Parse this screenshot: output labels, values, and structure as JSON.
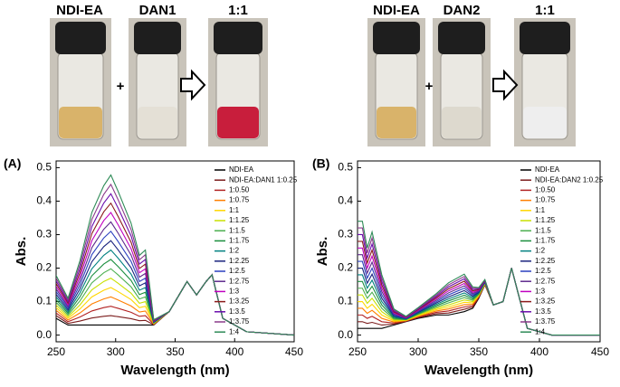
{
  "photos": {
    "left": [
      "NDI-EA",
      "DAN1",
      "1:1"
    ],
    "right": [
      "NDI-EA",
      "DAN2",
      "1:1"
    ],
    "plus": "+"
  },
  "chart_data": [
    {
      "type": "line",
      "panel_label": "(A)",
      "xlabel": "Wavelength (nm)",
      "ylabel": "Abs.",
      "xlim": [
        250,
        450
      ],
      "xticks": [
        250,
        300,
        350,
        400,
        450
      ],
      "ylim": [
        -0.02,
        0.52
      ],
      "yticks": [
        {
          "value": 0,
          "label": "0.0"
        },
        0.1,
        0.2,
        0.3,
        0.4,
        0.5
      ],
      "legend": "upper right",
      "x": [
        250,
        260,
        270,
        280,
        290,
        296,
        302,
        313,
        320,
        325,
        332,
        345,
        355,
        360,
        368,
        376,
        381,
        390,
        410,
        450
      ],
      "series": [
        {
          "name": "NDI-EA",
          "color": "#000000",
          "values": [
            0.05,
            0.03,
            0.03,
            0.03,
            0.03,
            0.03,
            0.03,
            0.03,
            0.03,
            0.03,
            0.03,
            0.07,
            0.13,
            0.16,
            0.12,
            0.16,
            0.18,
            0.05,
            0.01,
            0
          ]
        },
        {
          "name": "NDI-EA:DAN1 1:0.25",
          "color": "#7b1c1c",
          "values": [
            0.058,
            0.035,
            0.042,
            0.051,
            0.056,
            0.058,
            0.055,
            0.049,
            0.043,
            0.044,
            0.031,
            0.07,
            0.13,
            0.16,
            0.12,
            0.16,
            0.18,
            0.05,
            0.01,
            0
          ]
        },
        {
          "name": "1:0.50",
          "color": "#b22222",
          "values": [
            0.066,
            0.04,
            0.054,
            0.072,
            0.082,
            0.086,
            0.08,
            0.068,
            0.056,
            0.058,
            0.032,
            0.07,
            0.13,
            0.16,
            0.12,
            0.16,
            0.18,
            0.05,
            0.01,
            0
          ]
        },
        {
          "name": "1:0.75",
          "color": "#ff7f00",
          "values": [
            0.074,
            0.045,
            0.066,
            0.093,
            0.108,
            0.114,
            0.105,
            0.087,
            0.069,
            0.072,
            0.033,
            0.07,
            0.13,
            0.16,
            0.12,
            0.16,
            0.18,
            0.05,
            0.01,
            0
          ]
        },
        {
          "name": "1:1",
          "color": "#ffd700",
          "values": [
            0.082,
            0.05,
            0.078,
            0.114,
            0.134,
            0.142,
            0.13,
            0.106,
            0.082,
            0.086,
            0.034,
            0.07,
            0.13,
            0.16,
            0.12,
            0.16,
            0.18,
            0.05,
            0.01,
            0
          ]
        },
        {
          "name": "1:1.25",
          "color": "#c8e000",
          "values": [
            0.09,
            0.055,
            0.09,
            0.135,
            0.16,
            0.17,
            0.155,
            0.125,
            0.095,
            0.1,
            0.035,
            0.07,
            0.13,
            0.16,
            0.12,
            0.16,
            0.18,
            0.05,
            0.01,
            0
          ]
        },
        {
          "name": "1:1.5",
          "color": "#4caf50",
          "values": [
            0.098,
            0.06,
            0.102,
            0.156,
            0.186,
            0.198,
            0.18,
            0.144,
            0.108,
            0.114,
            0.036,
            0.07,
            0.13,
            0.16,
            0.12,
            0.16,
            0.18,
            0.05,
            0.01,
            0
          ]
        },
        {
          "name": "1:1.75",
          "color": "#1b8e3e",
          "values": [
            0.106,
            0.065,
            0.114,
            0.177,
            0.212,
            0.226,
            0.205,
            0.163,
            0.121,
            0.128,
            0.037,
            0.07,
            0.13,
            0.16,
            0.12,
            0.16,
            0.18,
            0.05,
            0.01,
            0
          ]
        },
        {
          "name": "1:2",
          "color": "#008080",
          "values": [
            0.114,
            0.07,
            0.126,
            0.198,
            0.238,
            0.254,
            0.23,
            0.182,
            0.134,
            0.142,
            0.038,
            0.07,
            0.13,
            0.16,
            0.12,
            0.16,
            0.18,
            0.05,
            0.01,
            0
          ]
        },
        {
          "name": "1:2.25",
          "color": "#1a237e",
          "values": [
            0.122,
            0.075,
            0.138,
            0.219,
            0.264,
            0.282,
            0.255,
            0.201,
            0.147,
            0.156,
            0.039,
            0.07,
            0.13,
            0.16,
            0.12,
            0.16,
            0.18,
            0.05,
            0.01,
            0
          ]
        },
        {
          "name": "1:2.5",
          "color": "#2a3fbf",
          "values": [
            0.13,
            0.08,
            0.15,
            0.24,
            0.29,
            0.31,
            0.28,
            0.22,
            0.16,
            0.17,
            0.04,
            0.07,
            0.13,
            0.16,
            0.12,
            0.16,
            0.18,
            0.05,
            0.01,
            0
          ]
        },
        {
          "name": "1:2.75",
          "color": "#5e2a8c",
          "values": [
            0.138,
            0.085,
            0.162,
            0.261,
            0.316,
            0.338,
            0.305,
            0.239,
            0.173,
            0.184,
            0.041,
            0.07,
            0.13,
            0.16,
            0.12,
            0.16,
            0.18,
            0.05,
            0.01,
            0
          ]
        },
        {
          "name": "1:3",
          "color": "#c000c0",
          "values": [
            0.146,
            0.09,
            0.174,
            0.282,
            0.342,
            0.366,
            0.33,
            0.258,
            0.186,
            0.198,
            0.042,
            0.07,
            0.13,
            0.16,
            0.12,
            0.16,
            0.18,
            0.05,
            0.01,
            0
          ]
        },
        {
          "name": "1:3.25",
          "color": "#8b1a1a",
          "values": [
            0.154,
            0.095,
            0.186,
            0.303,
            0.368,
            0.394,
            0.355,
            0.277,
            0.199,
            0.212,
            0.043,
            0.07,
            0.13,
            0.16,
            0.12,
            0.16,
            0.18,
            0.05,
            0.01,
            0
          ]
        },
        {
          "name": "1:3.5",
          "color": "#6a0dad",
          "values": [
            0.162,
            0.1,
            0.198,
            0.324,
            0.394,
            0.422,
            0.38,
            0.296,
            0.212,
            0.226,
            0.044,
            0.07,
            0.13,
            0.16,
            0.12,
            0.16,
            0.18,
            0.05,
            0.01,
            0
          ]
        },
        {
          "name": "1:3.75",
          "color": "#8b3a8b",
          "values": [
            0.17,
            0.105,
            0.21,
            0.345,
            0.42,
            0.45,
            0.405,
            0.315,
            0.225,
            0.24,
            0.045,
            0.07,
            0.13,
            0.16,
            0.12,
            0.16,
            0.18,
            0.05,
            0.01,
            0
          ]
        },
        {
          "name": "1:4",
          "color": "#2e8b57",
          "values": [
            0.178,
            0.11,
            0.222,
            0.366,
            0.446,
            0.478,
            0.43,
            0.334,
            0.238,
            0.254,
            0.046,
            0.07,
            0.13,
            0.16,
            0.12,
            0.16,
            0.18,
            0.05,
            0.01,
            0
          ]
        }
      ]
    },
    {
      "type": "line",
      "panel_label": "(B)",
      "xlabel": "Wavelength (nm)",
      "ylabel": "Abs.",
      "xlim": [
        250,
        450
      ],
      "xticks": [
        250,
        300,
        350,
        400,
        450
      ],
      "ylim": [
        -0.02,
        0.52
      ],
      "yticks": [
        {
          "value": 0,
          "label": "0.0"
        },
        0.1,
        0.2,
        0.3,
        0.4,
        0.5
      ],
      "legend": "upper right",
      "x": [
        250,
        254,
        258,
        262,
        270,
        280,
        290,
        300,
        315,
        325,
        338,
        345,
        350,
        355,
        362,
        370,
        377,
        390,
        410,
        450
      ],
      "series": [
        {
          "name": "NDI-EA",
          "color": "#000000",
          "values": [
            0.02,
            0.02,
            0.02,
            0.02,
            0.02,
            0.03,
            0.04,
            0.05,
            0.06,
            0.06,
            0.07,
            0.08,
            0.11,
            0.15,
            0.09,
            0.1,
            0.2,
            0.02,
            0,
            0
          ]
        },
        {
          "name": "NDI-EA:DAN2 1:0.25",
          "color": "#7b1c1c",
          "values": [
            0.04,
            0.04,
            0.035,
            0.038,
            0.03,
            0.033,
            0.041,
            0.052,
            0.064,
            0.066,
            0.077,
            0.084,
            0.112,
            0.151,
            0.09,
            0.1,
            0.2,
            0.02,
            0,
            0
          ]
        },
        {
          "name": "1:0.50",
          "color": "#b22222",
          "values": [
            0.06,
            0.06,
            0.05,
            0.056,
            0.04,
            0.036,
            0.042,
            0.054,
            0.068,
            0.072,
            0.084,
            0.088,
            0.114,
            0.152,
            0.09,
            0.1,
            0.2,
            0.02,
            0,
            0
          ]
        },
        {
          "name": "1:0.75",
          "color": "#ff7f00",
          "values": [
            0.08,
            0.08,
            0.065,
            0.074,
            0.05,
            0.039,
            0.043,
            0.056,
            0.072,
            0.078,
            0.091,
            0.092,
            0.116,
            0.153,
            0.09,
            0.1,
            0.2,
            0.02,
            0,
            0
          ]
        },
        {
          "name": "1:1",
          "color": "#ffd700",
          "values": [
            0.1,
            0.1,
            0.08,
            0.092,
            0.06,
            0.042,
            0.044,
            0.058,
            0.076,
            0.084,
            0.098,
            0.096,
            0.118,
            0.154,
            0.09,
            0.1,
            0.2,
            0.02,
            0,
            0
          ]
        },
        {
          "name": "1:1.25",
          "color": "#c8e000",
          "values": [
            0.12,
            0.12,
            0.095,
            0.11,
            0.07,
            0.045,
            0.045,
            0.06,
            0.08,
            0.09,
            0.105,
            0.1,
            0.12,
            0.155,
            0.09,
            0.1,
            0.2,
            0.02,
            0,
            0
          ]
        },
        {
          "name": "1:1.5",
          "color": "#4caf50",
          "values": [
            0.14,
            0.14,
            0.11,
            0.128,
            0.08,
            0.048,
            0.046,
            0.062,
            0.084,
            0.096,
            0.112,
            0.104,
            0.122,
            0.156,
            0.09,
            0.1,
            0.2,
            0.02,
            0,
            0
          ]
        },
        {
          "name": "1:1.75",
          "color": "#1b8e3e",
          "values": [
            0.16,
            0.16,
            0.125,
            0.146,
            0.09,
            0.051,
            0.047,
            0.064,
            0.088,
            0.102,
            0.119,
            0.108,
            0.124,
            0.157,
            0.09,
            0.1,
            0.2,
            0.02,
            0,
            0
          ]
        },
        {
          "name": "1:2",
          "color": "#008080",
          "values": [
            0.18,
            0.18,
            0.14,
            0.164,
            0.1,
            0.054,
            0.048,
            0.066,
            0.092,
            0.108,
            0.126,
            0.112,
            0.126,
            0.158,
            0.09,
            0.1,
            0.2,
            0.02,
            0,
            0
          ]
        },
        {
          "name": "1:2.25",
          "color": "#1a237e",
          "values": [
            0.2,
            0.2,
            0.155,
            0.182,
            0.11,
            0.057,
            0.049,
            0.068,
            0.096,
            0.114,
            0.133,
            0.116,
            0.128,
            0.159,
            0.09,
            0.1,
            0.2,
            0.02,
            0,
            0
          ]
        },
        {
          "name": "1:2.5",
          "color": "#2a3fbf",
          "values": [
            0.22,
            0.22,
            0.17,
            0.2,
            0.12,
            0.06,
            0.05,
            0.07,
            0.1,
            0.12,
            0.14,
            0.12,
            0.13,
            0.16,
            0.09,
            0.1,
            0.2,
            0.02,
            0,
            0
          ]
        },
        {
          "name": "1:2.75",
          "color": "#5e2a8c",
          "values": [
            0.24,
            0.24,
            0.185,
            0.218,
            0.13,
            0.063,
            0.051,
            0.072,
            0.104,
            0.126,
            0.147,
            0.124,
            0.132,
            0.161,
            0.09,
            0.1,
            0.2,
            0.02,
            0,
            0
          ]
        },
        {
          "name": "1:3",
          "color": "#c000c0",
          "values": [
            0.26,
            0.26,
            0.2,
            0.236,
            0.14,
            0.066,
            0.052,
            0.074,
            0.108,
            0.132,
            0.154,
            0.128,
            0.134,
            0.162,
            0.09,
            0.1,
            0.2,
            0.02,
            0,
            0
          ]
        },
        {
          "name": "1:3.25",
          "color": "#8b1a1a",
          "values": [
            0.28,
            0.28,
            0.215,
            0.254,
            0.15,
            0.069,
            0.053,
            0.076,
            0.112,
            0.138,
            0.161,
            0.132,
            0.136,
            0.163,
            0.09,
            0.1,
            0.2,
            0.02,
            0,
            0
          ]
        },
        {
          "name": "1:3.5",
          "color": "#6a0dad",
          "values": [
            0.3,
            0.3,
            0.23,
            0.272,
            0.16,
            0.072,
            0.054,
            0.078,
            0.116,
            0.144,
            0.168,
            0.136,
            0.138,
            0.164,
            0.09,
            0.1,
            0.2,
            0.02,
            0,
            0
          ]
        },
        {
          "name": "1:3.75",
          "color": "#8b3a8b",
          "values": [
            0.32,
            0.32,
            0.245,
            0.29,
            0.17,
            0.075,
            0.055,
            0.08,
            0.12,
            0.15,
            0.175,
            0.14,
            0.14,
            0.165,
            0.09,
            0.1,
            0.2,
            0.02,
            0,
            0
          ]
        },
        {
          "name": "1:4",
          "color": "#2e8b57",
          "values": [
            0.34,
            0.34,
            0.26,
            0.308,
            0.18,
            0.078,
            0.056,
            0.082,
            0.124,
            0.156,
            0.182,
            0.144,
            0.142,
            0.166,
            0.09,
            0.1,
            0.2,
            0.02,
            0,
            0
          ]
        }
      ]
    }
  ]
}
